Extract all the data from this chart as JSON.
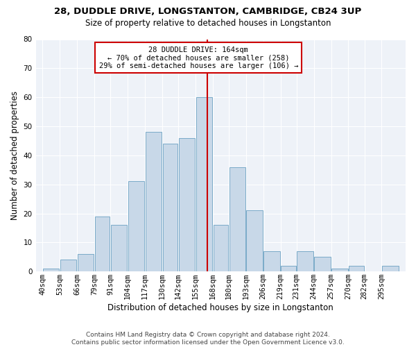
{
  "title1": "28, DUDDLE DRIVE, LONGSTANTON, CAMBRIDGE, CB24 3UP",
  "title2": "Size of property relative to detached houses in Longstanton",
  "xlabel": "Distribution of detached houses by size in Longstanton",
  "ylabel": "Number of detached properties",
  "footer1": "Contains HM Land Registry data © Crown copyright and database right 2024.",
  "footer2": "Contains public sector information licensed under the Open Government Licence v3.0.",
  "bin_labels": [
    "40sqm",
    "53sqm",
    "66sqm",
    "79sqm",
    "91sqm",
    "104sqm",
    "117sqm",
    "130sqm",
    "142sqm",
    "155sqm",
    "168sqm",
    "180sqm",
    "193sqm",
    "206sqm",
    "219sqm",
    "231sqm",
    "244sqm",
    "257sqm",
    "270sqm",
    "282sqm",
    "295sqm"
  ],
  "bar_values": [
    1,
    4,
    6,
    19,
    16,
    31,
    48,
    44,
    46,
    60,
    16,
    36,
    21,
    7,
    2,
    7,
    5,
    1,
    2,
    0,
    2
  ],
  "bin_edges": [
    40,
    53,
    66,
    79,
    91,
    104,
    117,
    130,
    142,
    155,
    168,
    180,
    193,
    206,
    219,
    231,
    244,
    257,
    270,
    282,
    295,
    308
  ],
  "property_size": 164,
  "bar_color": "#c8d8e8",
  "bar_edge_color": "#7aaac8",
  "vline_color": "#cc0000",
  "background_color": "#eef2f8",
  "grid_color": "#ffffff",
  "ylim": [
    0,
    80
  ],
  "yticks": [
    0,
    10,
    20,
    30,
    40,
    50,
    60,
    70,
    80
  ],
  "annotation_text1": "28 DUDDLE DRIVE: 164sqm",
  "annotation_text2": "← 70% of detached houses are smaller (258)",
  "annotation_text3": "29% of semi-detached houses are larger (106) →",
  "legend_box_color": "#cc0000",
  "title1_fontsize": 9.5,
  "title2_fontsize": 8.5,
  "xlabel_fontsize": 8.5,
  "ylabel_fontsize": 8.5,
  "tick_fontsize": 7.5,
  "annotation_fontsize": 7.5,
  "footer_fontsize": 6.5
}
